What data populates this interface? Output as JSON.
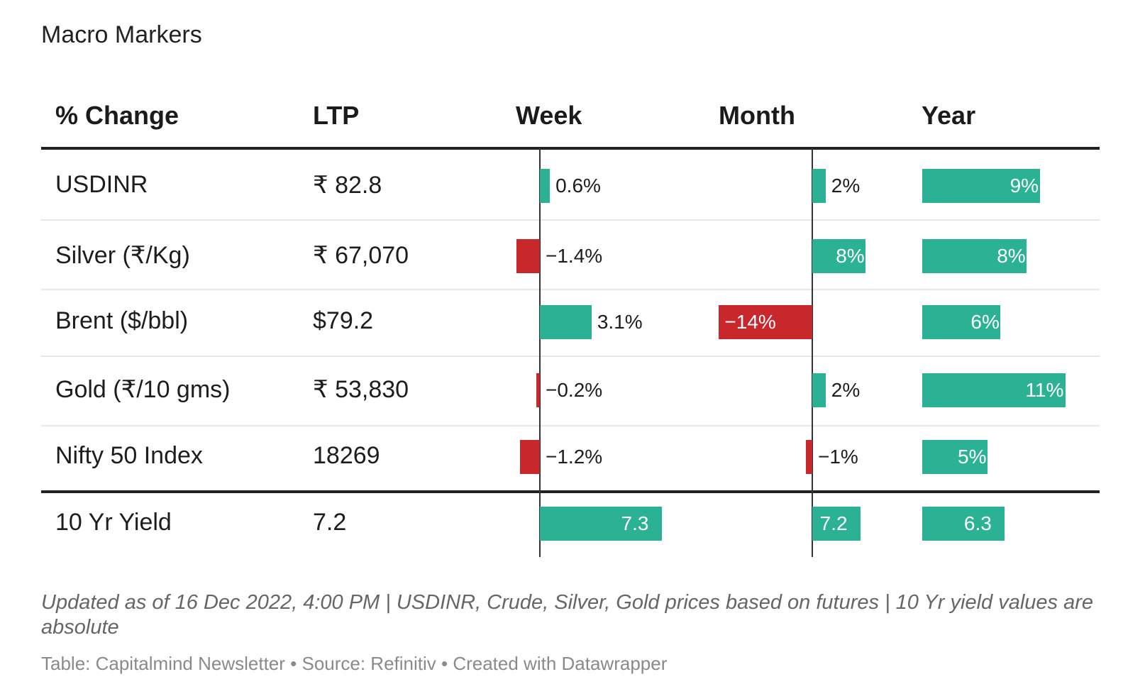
{
  "title": "Macro Markers",
  "colors": {
    "positive": "#2bb193",
    "negative": "#c8272b",
    "rule": "#222222",
    "divider": "#e6e6e6"
  },
  "chart_data": {
    "type": "table",
    "columns": [
      "% Change",
      "LTP",
      "Week",
      "Month",
      "Year"
    ],
    "rows": [
      {
        "name": "USDINR",
        "ltp": "₹ 82.8",
        "week": 0.6,
        "week_label": "0.6%",
        "month": 2,
        "month_label": "2%",
        "year": 9,
        "year_label": "9%"
      },
      {
        "name": "Silver (₹/Kg)",
        "ltp": "₹ 67,070",
        "week": -1.4,
        "week_label": "−1.4%",
        "month": 8,
        "month_label": "8%",
        "year": 8,
        "year_label": "8%"
      },
      {
        "name": "Brent ($/bbl)",
        "ltp": "$79.2",
        "week": 3.1,
        "week_label": "3.1%",
        "month": -14,
        "month_label": "−14%",
        "year": 6,
        "year_label": "6%"
      },
      {
        "name": "Gold (₹/10 gms)",
        "ltp": "₹ 53,830",
        "week": -0.2,
        "week_label": "−0.2%",
        "month": 2,
        "month_label": "2%",
        "year": 11,
        "year_label": "11%"
      },
      {
        "name": "Nifty 50 Index",
        "ltp": "18269",
        "week": -1.2,
        "week_label": "−1.2%",
        "month": -1,
        "month_label": "−1%",
        "year": 5,
        "year_label": "5%"
      },
      {
        "name": "10 Yr Yield",
        "ltp": "7.2",
        "week": 7.3,
        "week_label": "7.3",
        "month": 7.2,
        "month_label": "7.2",
        "year": 6.3,
        "year_label": "6.3"
      }
    ]
  },
  "notes": "Updated as of 16 Dec 2022, 4:00 PM | USDINR, Crude, Silver, Gold prices based on futures | 10 Yr yield values are absolute",
  "credit": "Table: Capitalmind Newsletter • Source: Refinitiv • Created with Datawrapper"
}
